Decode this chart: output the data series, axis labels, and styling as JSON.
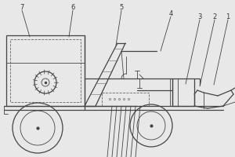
{
  "bg_color": "#e8e8e8",
  "line_color": "#444444",
  "dashed_color": "#666666",
  "label_color": "#333333",
  "lw_main": 0.9,
  "lw_thin": 0.6,
  "label_fs": 6.0
}
